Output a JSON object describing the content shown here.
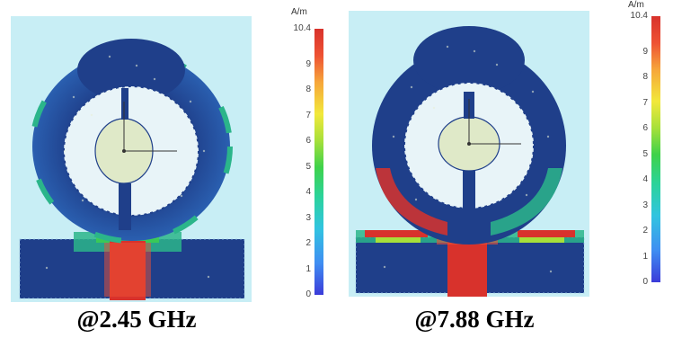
{
  "panels": [
    {
      "id": "left",
      "frequency_label": "@2.45 GHz",
      "colorbar": {
        "unit": "A/m",
        "max_label": "10.4",
        "ticks": [
          "9",
          "8",
          "7",
          "6",
          "5",
          "4",
          "3",
          "2",
          "1",
          "0"
        ]
      }
    },
    {
      "id": "right",
      "frequency_label": "@7.88 GHz",
      "colorbar": {
        "unit": "A/m",
        "max_label": "10.4",
        "ticks": [
          "9",
          "8",
          "7",
          "6",
          "5",
          "4",
          "3",
          "2",
          "1",
          "0"
        ]
      }
    }
  ],
  "colors": {
    "background": "#c8eef5",
    "field_low": "#1f3f8a",
    "field_mid": "#2bb58a",
    "field_high": "#d8322c",
    "field_bright": "#e8f0d8"
  },
  "colorbar_scale": {
    "min": 0,
    "max": 10.4,
    "values": [
      9,
      8,
      7,
      6,
      5,
      4,
      3,
      2,
      1,
      0
    ]
  }
}
